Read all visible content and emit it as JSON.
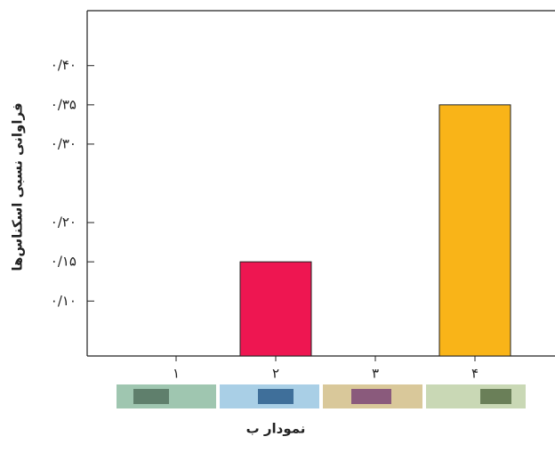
{
  "chart_data": {
    "type": "bar",
    "x_label": "نمودار ب",
    "y_label": "فراوانی نسبی اسکناس‌ها",
    "categories": [
      "۱",
      "۲",
      "۳",
      "۴"
    ],
    "values": [
      null,
      0.15,
      null,
      0.35
    ],
    "colors": [
      "#ee1651",
      "#ee1651",
      "#f9b418",
      "#f9b418"
    ],
    "ylim": [
      0.03,
      0.47
    ],
    "yticks": [
      {
        "value": 0.4,
        "label": "۰/۴۰"
      },
      {
        "value": 0.35,
        "label": "۰/۳۵"
      },
      {
        "value": 0.3,
        "label": "۰/۳۰"
      },
      {
        "value": 0.2,
        "label": "۰/۲۰"
      },
      {
        "value": 0.15,
        "label": "۰/۱۵"
      },
      {
        "value": 0.1,
        "label": "۰/۱۰"
      }
    ]
  }
}
